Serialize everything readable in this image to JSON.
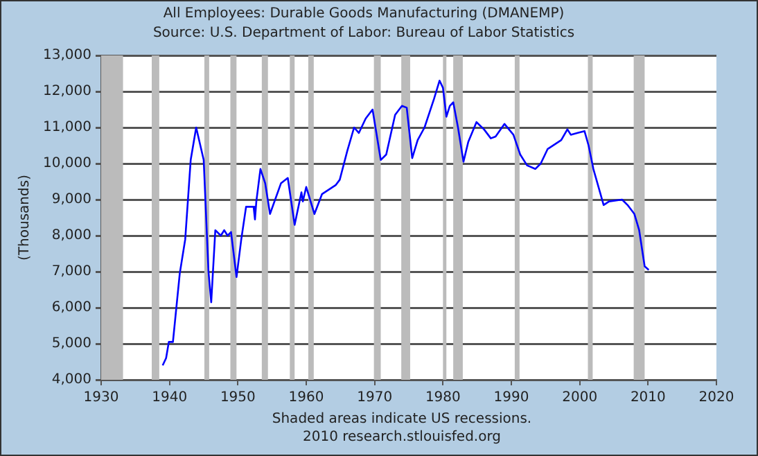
{
  "chart_data": {
    "type": "line",
    "title": "All Employees: Durable Goods Manufacturing (DMANEMP)",
    "subtitle": "Source: U.S. Department of Labor: Bureau of Labor Statistics",
    "ylabel": "(Thousands)",
    "annotations": [
      "Shaded areas indicate US recessions.",
      "2010 research.stlouisfed.org"
    ],
    "x": [
      1939.0,
      1939.5,
      1939.9,
      1940.5,
      1941.5,
      1942.3,
      1943.1,
      1943.9,
      1945.0,
      1945.7,
      1946.1,
      1946.7,
      1947.5,
      1948.0,
      1948.5,
      1949.0,
      1949.8,
      1950.5,
      1951.2,
      1952.3,
      1952.5,
      1952.7,
      1953.3,
      1954.0,
      1954.7,
      1956.3,
      1957.3,
      1958.3,
      1959.3,
      1959.5,
      1960.0,
      1961.2,
      1962.3,
      1964.3,
      1964.9,
      1966.0,
      1967.0,
      1967.7,
      1968.7,
      1969.7,
      1970.9,
      1971.7,
      1973.0,
      1974.0,
      1974.7,
      1975.5,
      1976.3,
      1977.3,
      1978.7,
      1979.5,
      1980.0,
      1980.5,
      1981.0,
      1981.5,
      1982.2,
      1983.0,
      1983.7,
      1984.9,
      1986.0,
      1987.0,
      1987.7,
      1989.0,
      1990.3,
      1991.3,
      1992.3,
      1993.5,
      1994.3,
      1995.3,
      1997.3,
      1998.2,
      1998.7,
      1999.7,
      2000.7,
      2001.3,
      2002.0,
      2003.5,
      2004.3,
      2006.2,
      2007.0,
      2008.0,
      2008.7,
      2009.5,
      2010.1
    ],
    "series": [
      {
        "color": "#0000ff",
        "values": [
          4400,
          4600,
          5050,
          5050,
          6950,
          7900,
          10100,
          11000,
          10100,
          7000,
          6150,
          8150,
          8000,
          8150,
          8000,
          8100,
          6850,
          7900,
          8800,
          8800,
          8450,
          8950,
          9850,
          9450,
          8600,
          9450,
          9600,
          8300,
          9200,
          8950,
          9350,
          8600,
          9150,
          9400,
          9550,
          10350,
          11000,
          10850,
          11250,
          11500,
          10100,
          10250,
          11350,
          11600,
          11550,
          10150,
          10650,
          11000,
          11800,
          12300,
          12100,
          11300,
          11600,
          11700,
          11000,
          10050,
          10600,
          11150,
          10950,
          10700,
          10750,
          11100,
          10800,
          10250,
          9950,
          9850,
          10000,
          10400,
          10650,
          10950,
          10800,
          10850,
          10900,
          10500,
          9850,
          8850,
          8950,
          9000,
          8850,
          8600,
          8150,
          7150,
          7050
        ]
      }
    ],
    "xlim": [
      1930,
      2020
    ],
    "xticks": [
      1930,
      1940,
      1950,
      1960,
      1970,
      1980,
      1990,
      2000,
      2010,
      2020
    ],
    "ylim": [
      4000,
      13000
    ],
    "yticks": [
      {
        "value": 4000,
        "label": "4,000"
      },
      {
        "value": 5000,
        "label": "5,000"
      },
      {
        "value": 6000,
        "label": "6,000"
      },
      {
        "value": 7000,
        "label": "7,000"
      },
      {
        "value": 8000,
        "label": "8,000"
      },
      {
        "value": 9000,
        "label": "9,000"
      },
      {
        "value": 10000,
        "label": "10,000"
      },
      {
        "value": 11000,
        "label": "11,000"
      },
      {
        "value": 12000,
        "label": "12,000"
      },
      {
        "value": 13000,
        "label": "13,000"
      }
    ],
    "grid": "y",
    "legend": false,
    "marker": "none",
    "line_style": "solid",
    "bands": [
      {
        "axis": "x",
        "from": 1930,
        "to": 1933.2,
        "color": "#bbbbbb"
      },
      {
        "axis": "x",
        "from": 1937.4,
        "to": 1938.5,
        "color": "#bbbbbb"
      },
      {
        "axis": "x",
        "from": 1945.1,
        "to": 1945.8,
        "color": "#bbbbbb"
      },
      {
        "axis": "x",
        "from": 1948.9,
        "to": 1949.8,
        "color": "#bbbbbb"
      },
      {
        "axis": "x",
        "from": 1953.5,
        "to": 1954.4,
        "color": "#bbbbbb"
      },
      {
        "axis": "x",
        "from": 1957.6,
        "to": 1958.3,
        "color": "#bbbbbb"
      },
      {
        "axis": "x",
        "from": 1960.3,
        "to": 1961.1,
        "color": "#bbbbbb"
      },
      {
        "axis": "x",
        "from": 1969.9,
        "to": 1970.9,
        "color": "#bbbbbb"
      },
      {
        "axis": "x",
        "from": 1973.9,
        "to": 1975.2,
        "color": "#bbbbbb"
      },
      {
        "axis": "x",
        "from": 1980.0,
        "to": 1980.5,
        "color": "#bbbbbb"
      },
      {
        "axis": "x",
        "from": 1981.5,
        "to": 1982.9,
        "color": "#bbbbbb"
      },
      {
        "axis": "x",
        "from": 1990.5,
        "to": 1991.2,
        "color": "#bbbbbb"
      },
      {
        "axis": "x",
        "from": 2001.2,
        "to": 2001.9,
        "color": "#bbbbbb"
      },
      {
        "axis": "x",
        "from": 2007.9,
        "to": 2009.5,
        "color": "#bbbbbb"
      }
    ]
  }
}
